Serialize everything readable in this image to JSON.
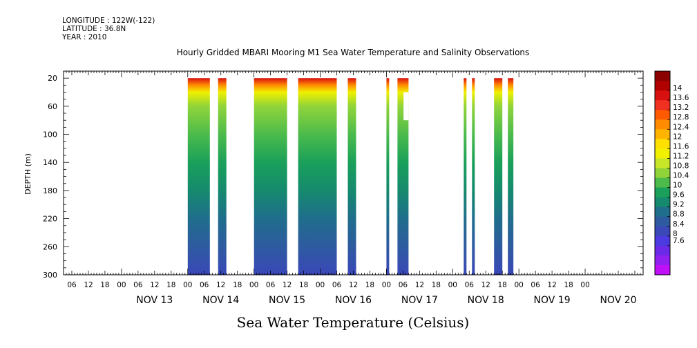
{
  "header": {
    "longitude": "LONGITUDE : 122W(-122)",
    "latitude": "LATITUDE : 36.8N",
    "year": "YEAR : 2010"
  },
  "chart_data": {
    "type": "heatmap",
    "title": "Hourly Gridded MBARI Mooring M1 Sea Water Temperature and Salinity Observations",
    "xlabel": "Sea Water Temperature (Celsius)",
    "ylabel": "DEPTH (m)",
    "ylim": [
      300,
      20
    ],
    "y_ticks": [
      20,
      60,
      100,
      140,
      180,
      220,
      260,
      300
    ],
    "x_hour_ticks": [
      "06",
      "12",
      "18",
      "00",
      "06",
      "12",
      "18",
      "00",
      "06",
      "12",
      "18",
      "00",
      "06",
      "12",
      "18",
      "00",
      "06",
      "12",
      "18",
      "00",
      "06",
      "12",
      "18",
      "00",
      "06",
      "12",
      "18",
      "00",
      "06",
      "12",
      "18",
      "00"
    ],
    "x_day_labels": [
      "NOV 13",
      "NOV 14",
      "NOV 15",
      "NOV 16",
      "NOV 17",
      "NOV 18",
      "NOV 19",
      "NOV 20"
    ],
    "colorbar": {
      "levels": [
        "14",
        "13.6",
        "13.2",
        "12.8",
        "12.4",
        "12",
        "11.6",
        "11.2",
        "10.8",
        "10.4",
        "10",
        "9.6",
        "9.2",
        "8.8",
        "8.4",
        "8",
        "7.6"
      ],
      "colors": [
        "#8b0000",
        "#b00000",
        "#d81010",
        "#f03020",
        "#ff5a00",
        "#ff8c00",
        "#ffb400",
        "#ffe000",
        "#f0f000",
        "#c8e628",
        "#90d43a",
        "#4cbb4c",
        "#1aa05a",
        "#158a6e",
        "#1f6e8c",
        "#2e5aa0",
        "#3a48b8",
        "#4a3ae0",
        "#6a2ae8",
        "#9020f0",
        "#c010f8"
      ]
    },
    "data_blocks": [
      {
        "start": "NOV 14 00:00",
        "end": "NOV 14 08:00",
        "depth": [
          20,
          300
        ]
      },
      {
        "start": "NOV 14 11:00",
        "end": "NOV 14 14:00",
        "depth": [
          20,
          300
        ]
      },
      {
        "start": "NOV 15 00:00",
        "end": "NOV 15 12:00",
        "depth": [
          20,
          300
        ]
      },
      {
        "start": "NOV 15 16:00",
        "end": "NOV 16 06:00",
        "depth": [
          20,
          300
        ]
      },
      {
        "start": "NOV 16 10:00",
        "end": "NOV 16 13:00",
        "depth": [
          20,
          300
        ]
      },
      {
        "start": "NOV 17 00:00",
        "end": "NOV 17 01:00",
        "depth": [
          20,
          300
        ]
      },
      {
        "start": "NOV 17 04:00",
        "end": "NOV 17 08:00",
        "depth": [
          20,
          300
        ],
        "gap_depth": [
          40,
          80
        ]
      },
      {
        "start": "NOV 18 04:00",
        "end": "NOV 18 05:00",
        "depth": [
          20,
          300
        ]
      },
      {
        "start": "NOV 18 07:00",
        "end": "NOV 18 08:00",
        "depth": [
          20,
          300
        ]
      },
      {
        "start": "NOV 18 15:00",
        "end": "NOV 18 18:00",
        "depth": [
          20,
          300
        ]
      },
      {
        "start": "NOV 18 20:00",
        "end": "NOV 18 22:00",
        "depth": [
          20,
          300
        ]
      }
    ],
    "temperature_profile": [
      {
        "depth": 20,
        "value": 13.2
      },
      {
        "depth": 30,
        "value": 12.0
      },
      {
        "depth": 40,
        "value": 11.0
      },
      {
        "depth": 60,
        "value": 10.2
      },
      {
        "depth": 100,
        "value": 9.8
      },
      {
        "depth": 140,
        "value": 9.2
      },
      {
        "depth": 180,
        "value": 9.0
      },
      {
        "depth": 220,
        "value": 8.6
      },
      {
        "depth": 260,
        "value": 8.2
      },
      {
        "depth": 300,
        "value": 7.6
      }
    ]
  }
}
